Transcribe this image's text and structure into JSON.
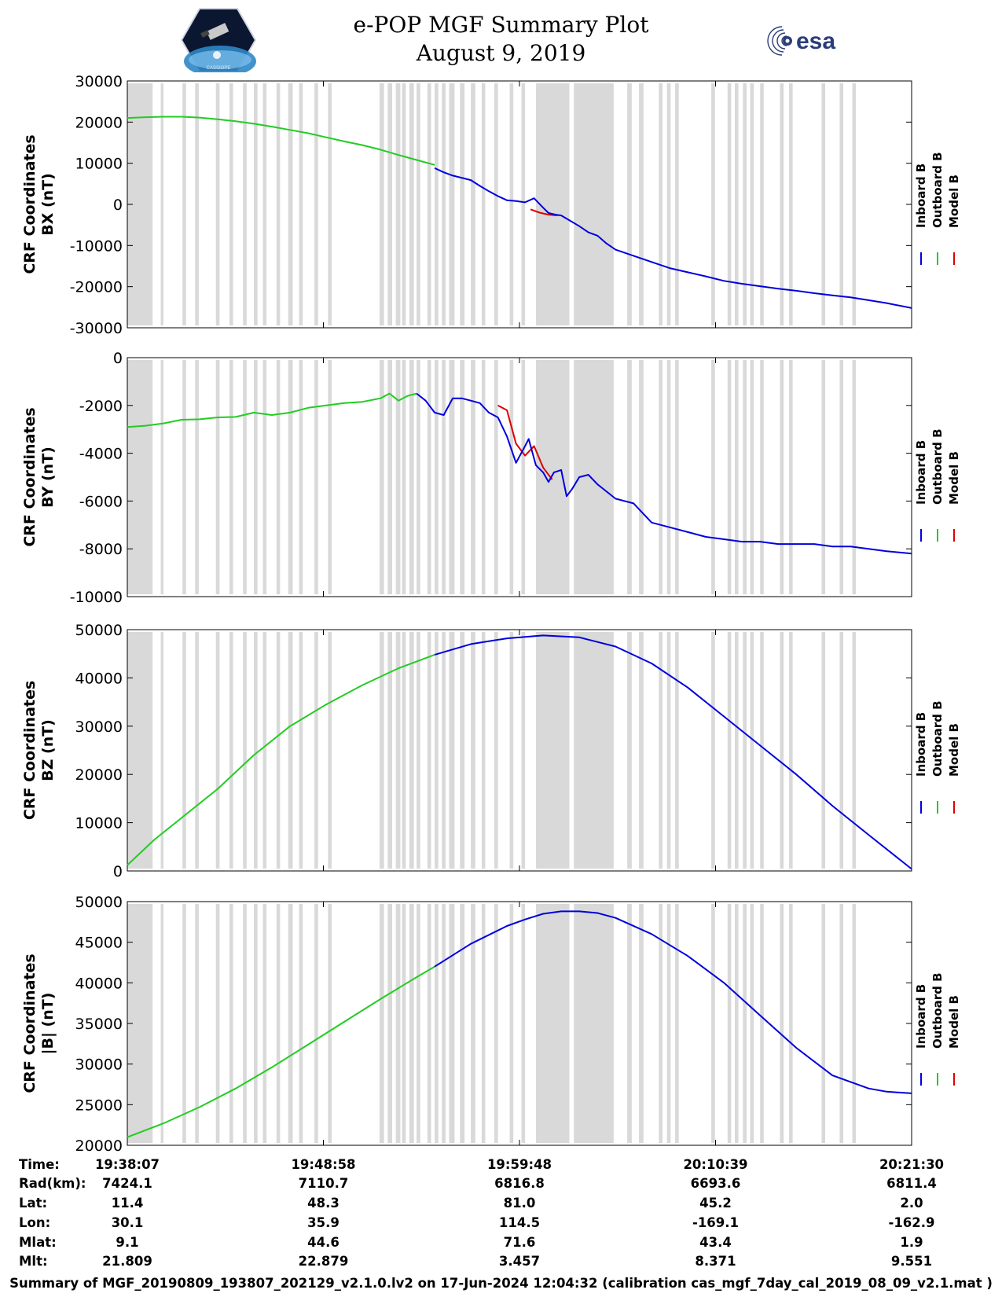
{
  "header": {
    "title_line1": "e-POP MGF Summary Plot",
    "title_line2": "August 9, 2019",
    "logo_left_text": "CASSIOPE",
    "logo_right_text": "esa"
  },
  "chart_data": {
    "type": "line",
    "x_ticks": [
      "19:38:07",
      "19:48:58",
      "19:59:48",
      "20:10:39",
      "20:21:30"
    ],
    "x_range_minutes": [
      0,
      43.38
    ],
    "shaded_intervals_minutes": [
      [
        0,
        1.4
      ],
      [
        1.85,
        2.0
      ],
      [
        3.05,
        3.25
      ],
      [
        3.75,
        3.95
      ],
      [
        4.9,
        5.1
      ],
      [
        5.65,
        5.85
      ],
      [
        6.4,
        6.6
      ],
      [
        7.0,
        7.2
      ],
      [
        7.5,
        7.7
      ],
      [
        8.25,
        8.45
      ],
      [
        8.9,
        9.15
      ],
      [
        9.5,
        9.7
      ],
      [
        10.35,
        10.55
      ],
      [
        11.1,
        11.3
      ],
      [
        13.95,
        14.2
      ],
      [
        14.4,
        14.65
      ],
      [
        14.85,
        15.1
      ],
      [
        15.2,
        15.4
      ],
      [
        15.6,
        15.85
      ],
      [
        16.0,
        16.2
      ],
      [
        16.6,
        16.8
      ],
      [
        17.0,
        17.2
      ],
      [
        17.4,
        17.6
      ],
      [
        17.8,
        18.1
      ],
      [
        18.4,
        18.65
      ],
      [
        19.0,
        19.25
      ],
      [
        19.6,
        19.8
      ],
      [
        20.3,
        20.5
      ],
      [
        21.15,
        21.35
      ],
      [
        21.8,
        22.0
      ],
      [
        22.6,
        24.45
      ],
      [
        24.7,
        26.9
      ],
      [
        27.65,
        27.9
      ],
      [
        28.3,
        28.55
      ],
      [
        29.4,
        29.6
      ],
      [
        29.85,
        30.05
      ],
      [
        30.3,
        30.5
      ],
      [
        32.3,
        32.5
      ],
      [
        33.2,
        33.4
      ],
      [
        33.6,
        33.8
      ],
      [
        34.05,
        34.25
      ],
      [
        34.45,
        34.65
      ],
      [
        35.0,
        35.2
      ],
      [
        36.1,
        36.3
      ],
      [
        36.6,
        36.8
      ],
      [
        38.4,
        38.6
      ],
      [
        39.4,
        39.6
      ],
      [
        40.1,
        40.3
      ]
    ],
    "legend": [
      "Inboard B",
      "Outboard B",
      "Model B"
    ],
    "legend_colors": [
      "#0000dd",
      "#22cc22",
      "#dd0000"
    ],
    "panels": [
      {
        "ylabel_line1": "CRF Coordinates",
        "ylabel_line2": "BX (nT)",
        "ylim": [
          -30000,
          30000
        ],
        "yticks": [
          30000,
          20000,
          10000,
          0,
          -10000,
          -20000,
          -30000
        ],
        "series": [
          {
            "name": "Outboard B",
            "color": "#22cc22",
            "x": [
              0,
              1,
              2,
              3,
              4,
              5,
              6,
              7,
              8,
              9,
              10,
              11,
              12,
              13,
              14,
              15,
              16,
              17
            ],
            "y": [
              21000,
              21200,
              21300,
              21300,
              21100,
              20700,
              20200,
              19600,
              18900,
              18100,
              17300,
              16300,
              15300,
              14400,
              13300,
              12000,
              10800,
              9600
            ]
          },
          {
            "name": "Model B",
            "color": "#dd0000",
            "x": [
              22.3,
              22.8,
              23.3,
              23.8
            ],
            "y": [
              -1200,
              -2000,
              -2500,
              -2700
            ]
          },
          {
            "name": "Inboard B",
            "color": "#0000dd",
            "x": [
              17,
              17.5,
              18,
              19,
              19.5,
              20,
              20.5,
              21,
              21.5,
              22,
              22.5,
              23,
              23.3,
              23.7,
              24,
              24.5,
              25,
              25.5,
              26,
              26.5,
              27,
              28,
              29,
              30,
              31,
              32,
              33,
              34,
              35,
              36,
              37,
              38,
              39,
              40,
              41,
              42,
              43.38
            ],
            "y": [
              8800,
              7800,
              7000,
              5900,
              4500,
              3200,
              2000,
              1000,
              800,
              500,
              1500,
              -800,
              -2100,
              -2500,
              -2700,
              -4000,
              -5300,
              -6800,
              -7600,
              -9500,
              -11000,
              -12500,
              -14000,
              -15500,
              -16500,
              -17500,
              -18600,
              -19300,
              -19900,
              -20500,
              -21000,
              -21600,
              -22100,
              -22600,
              -23300,
              -24000,
              -25200
            ]
          }
        ]
      },
      {
        "ylabel_line1": "CRF Coordinates",
        "ylabel_line2": "BY (nT)",
        "ylim": [
          -10000,
          0
        ],
        "yticks": [
          0,
          -2000,
          -4000,
          -6000,
          -8000,
          -10000
        ],
        "series": [
          {
            "name": "Outboard B",
            "color": "#22cc22",
            "x": [
              0,
              1,
              2,
              3,
              4,
              5,
              6,
              7,
              8,
              9,
              10,
              11,
              12,
              13,
              14,
              14.5,
              15,
              15.5,
              16
            ],
            "y": [
              -2900,
              -2850,
              -2750,
              -2600,
              -2580,
              -2500,
              -2480,
              -2300,
              -2400,
              -2300,
              -2100,
              -2000,
              -1900,
              -1850,
              -1700,
              -1500,
              -1800,
              -1600,
              -1500
            ]
          },
          {
            "name": "Model B",
            "color": "#dd0000",
            "x": [
              20.5,
              21,
              21.5,
              22,
              22.5,
              23,
              23.5
            ],
            "y": [
              -2000,
              -2200,
              -3600,
              -4100,
              -3700,
              -4600,
              -5100
            ]
          },
          {
            "name": "Inboard B",
            "color": "#0000dd",
            "x": [
              16,
              16.5,
              17,
              17.5,
              18,
              18.5,
              19,
              19.5,
              20,
              20.5,
              21,
              21.5,
              22,
              22.2,
              22.6,
              23,
              23.3,
              23.6,
              24,
              24.3,
              24.6,
              25,
              25.5,
              26,
              27,
              28,
              29,
              30,
              31,
              32,
              33,
              34,
              35,
              36,
              37,
              38,
              39,
              40,
              41,
              42,
              43.38
            ],
            "y": [
              -1500,
              -1800,
              -2300,
              -2400,
              -1700,
              -1700,
              -1800,
              -1900,
              -2300,
              -2500,
              -3300,
              -4400,
              -3700,
              -3400,
              -4500,
              -4800,
              -5200,
              -4800,
              -4700,
              -5800,
              -5500,
              -5000,
              -4900,
              -5300,
              -5900,
              -6100,
              -6900,
              -7100,
              -7300,
              -7500,
              -7600,
              -7700,
              -7700,
              -7800,
              -7800,
              -7800,
              -7900,
              -7900,
              -8000,
              -8100,
              -8200
            ]
          }
        ]
      },
      {
        "ylabel_line1": "CRF Coordinates",
        "ylabel_line2": "BZ (nT)",
        "ylim": [
          0,
          50000
        ],
        "yticks": [
          50000,
          40000,
          30000,
          20000,
          10000,
          0
        ],
        "series": [
          {
            "name": "Outboard B",
            "color": "#22cc22",
            "x": [
              0,
              1.5,
              3,
              5,
              7,
              9,
              11,
              13,
              15,
              17
            ],
            "y": [
              1200,
              6500,
              11000,
              17000,
              24000,
              30000,
              34500,
              38500,
              42000,
              44800
            ]
          },
          {
            "name": "Inboard B",
            "color": "#0000dd",
            "x": [
              17,
              19,
              21,
              23,
              25,
              27,
              29,
              31,
              33,
              35,
              37,
              39,
              41,
              43.38
            ],
            "y": [
              44800,
              47000,
              48200,
              48800,
              48400,
              46500,
              43000,
              38000,
              32000,
              26000,
              20000,
              13500,
              7500,
              400
            ]
          }
        ]
      },
      {
        "ylabel_line1": "CRF Coordinates",
        "ylabel_line2": "|B| (nT)",
        "ylim": [
          20000,
          50000
        ],
        "yticks": [
          50000,
          45000,
          40000,
          35000,
          30000,
          25000,
          20000
        ],
        "series": [
          {
            "name": "Outboard B",
            "color": "#22cc22",
            "x": [
              0,
              2,
              4,
              6,
              8,
              10,
              12,
              14,
              16,
              17
            ],
            "y": [
              21000,
              22700,
              24700,
              27000,
              29600,
              32400,
              35200,
              38000,
              40700,
              42000
            ]
          },
          {
            "name": "Inboard B",
            "color": "#0000dd",
            "x": [
              17,
              19,
              21,
              22,
              23,
              24,
              25,
              26,
              27,
              29,
              31,
              33,
              35,
              37,
              39,
              41,
              42,
              43.38
            ],
            "y": [
              42000,
              44800,
              47000,
              47800,
              48500,
              48800,
              48800,
              48600,
              48000,
              46000,
              43300,
              40000,
              36000,
              32000,
              28600,
              27000,
              26600,
              26400
            ]
          }
        ]
      }
    ],
    "table_labels": [
      "Time:",
      "Rad(km):",
      "Lat:",
      "Lon:",
      "Mlat:",
      "Mlt:"
    ],
    "table_rows": [
      [
        "19:38:07",
        "19:48:58",
        "19:59:48",
        "20:10:39",
        "20:21:30"
      ],
      [
        "7424.1",
        "7110.7",
        "6816.8",
        "6693.6",
        "6811.4"
      ],
      [
        "11.4",
        "48.3",
        "81.0",
        "45.2",
        "2.0"
      ],
      [
        "30.1",
        "35.9",
        "114.5",
        "-169.1",
        "-162.9"
      ],
      [
        "9.1",
        "44.6",
        "71.6",
        "43.4",
        "1.9"
      ],
      [
        "21.809",
        "22.879",
        "3.457",
        "8.371",
        "9.551"
      ]
    ]
  },
  "footer": "Summary of MGF_20190809_193807_202129_v2.1.0.lv2 on 17-Jun-2024 12:04:32 (calibration cas_mgf_7day_cal_2019_08_09_v2.1.mat )"
}
